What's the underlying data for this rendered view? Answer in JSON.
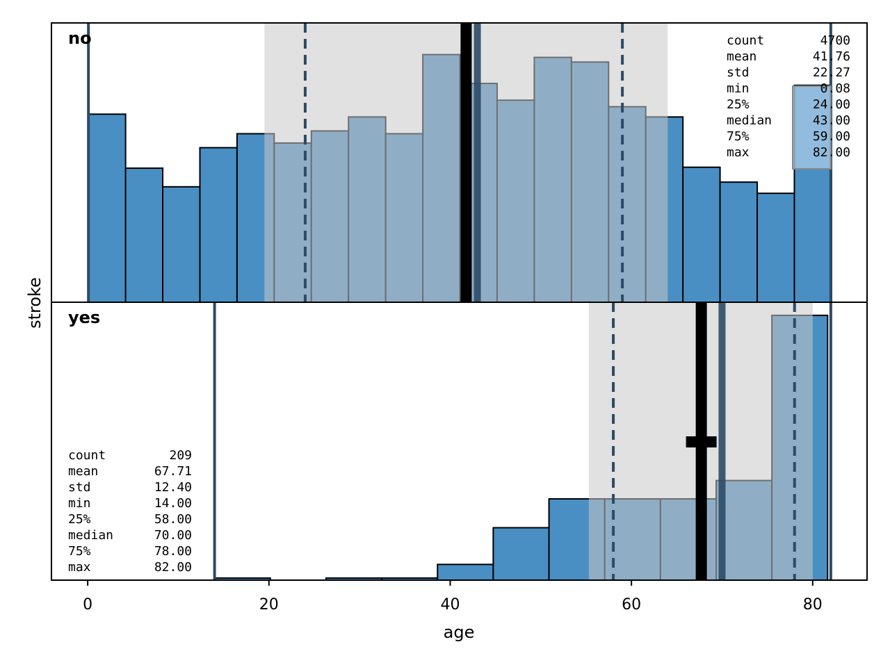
{
  "chart_data": {
    "type": "histogram",
    "xlabel": "age",
    "ylabel": "stroke",
    "xlim": [
      -4,
      86
    ],
    "x_ticks": [
      0,
      20,
      40,
      60,
      80
    ],
    "colors": {
      "bar": "#4a8fc3",
      "bar_edge": "#000000",
      "marker_line": "#2b4b66",
      "iqr_band": "#c8c8c8",
      "stats_box": "#a9cbe6"
    },
    "panels": [
      {
        "label": "no",
        "ylim": [
          0,
          300
        ],
        "bins": [
          {
            "x0": 0.08,
            "x1": 4.18,
            "count": 202
          },
          {
            "x0": 4.18,
            "x1": 8.28,
            "count": 144
          },
          {
            "x0": 8.28,
            "x1": 12.38,
            "count": 124
          },
          {
            "x0": 12.38,
            "x1": 16.48,
            "count": 166
          },
          {
            "x0": 16.48,
            "x1": 20.58,
            "count": 181
          },
          {
            "x0": 20.58,
            "x1": 24.68,
            "count": 171
          },
          {
            "x0": 24.68,
            "x1": 28.78,
            "count": 184
          },
          {
            "x0": 28.78,
            "x1": 32.88,
            "count": 199
          },
          {
            "x0": 32.88,
            "x1": 36.98,
            "count": 181
          },
          {
            "x0": 36.98,
            "x1": 41.08,
            "count": 266
          },
          {
            "x0": 41.08,
            "x1": 45.18,
            "count": 235
          },
          {
            "x0": 45.18,
            "x1": 49.28,
            "count": 217
          },
          {
            "x0": 49.28,
            "x1": 53.38,
            "count": 263
          },
          {
            "x0": 53.38,
            "x1": 57.48,
            "count": 258
          },
          {
            "x0": 57.48,
            "x1": 61.58,
            "count": 210
          },
          {
            "x0": 61.58,
            "x1": 65.68,
            "count": 199
          },
          {
            "x0": 65.68,
            "x1": 69.78,
            "count": 145
          },
          {
            "x0": 69.78,
            "x1": 73.88,
            "count": 129
          },
          {
            "x0": 73.88,
            "x1": 77.98,
            "count": 117
          },
          {
            "x0": 77.98,
            "x1": 82.08,
            "count": 233
          }
        ],
        "iqr": [
          19.5,
          64.0
        ],
        "quartile_lines": [
          24.0,
          59.0
        ],
        "median": 43.0,
        "mean": 41.76,
        "min": 0.08,
        "max": 82.0,
        "stats": [
          {
            "name": "count",
            "value": "4700"
          },
          {
            "name": "mean",
            "value": "41.76"
          },
          {
            "name": "std",
            "value": "22.27"
          },
          {
            "name": "min",
            "value": "0.08"
          },
          {
            "name": "25%",
            "value": "24.00"
          },
          {
            "name": "median",
            "value": "43.00"
          },
          {
            "name": "75%",
            "value": "59.00"
          },
          {
            "name": "max",
            "value": "82.00"
          }
        ]
      },
      {
        "label": "yes",
        "ylim": [
          0,
          53
        ],
        "bins": [
          {
            "x0": 14.0,
            "x1": 20.15,
            "count": 0.4
          },
          {
            "x0": 20.15,
            "x1": 26.3,
            "count": 0
          },
          {
            "x0": 26.3,
            "x1": 32.45,
            "count": 0.4
          },
          {
            "x0": 32.45,
            "x1": 38.6,
            "count": 0.4
          },
          {
            "x0": 38.6,
            "x1": 44.75,
            "count": 3
          },
          {
            "x0": 44.75,
            "x1": 50.9,
            "count": 10
          },
          {
            "x0": 50.9,
            "x1": 57.05,
            "count": 15.5
          },
          {
            "x0": 57.05,
            "x1": 63.2,
            "count": 15.5
          },
          {
            "x0": 63.2,
            "x1": 69.35,
            "count": 15.5
          },
          {
            "x0": 69.35,
            "x1": 75.5,
            "count": 19
          },
          {
            "x0": 75.5,
            "x1": 81.65,
            "count": 50.5
          }
        ],
        "iqr": [
          55.3,
          80.0
        ],
        "quartile_lines": [
          58.0,
          78.0
        ],
        "median": 70.0,
        "mean": 67.71,
        "min": 14.0,
        "max": 82.0,
        "stats": [
          {
            "name": "count",
            "value": "209"
          },
          {
            "name": "mean",
            "value": "67.71"
          },
          {
            "name": "std",
            "value": "12.40"
          },
          {
            "name": "min",
            "value": "14.00"
          },
          {
            "name": "25%",
            "value": "58.00"
          },
          {
            "name": "median",
            "value": "70.00"
          },
          {
            "name": "75%",
            "value": "78.00"
          },
          {
            "name": "max",
            "value": "82.00"
          }
        ]
      }
    ]
  }
}
